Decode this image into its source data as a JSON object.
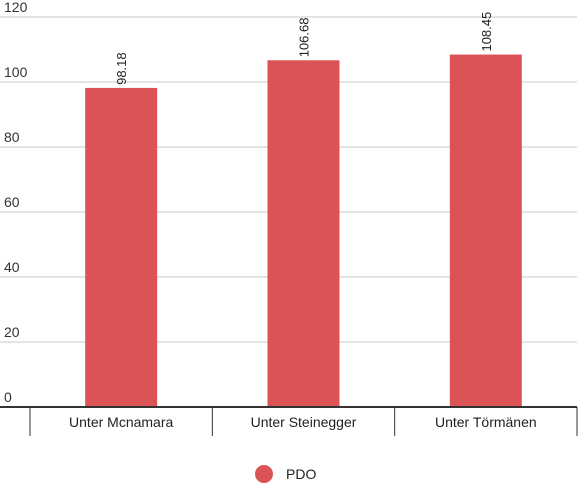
{
  "chart_data": {
    "type": "bar",
    "categories": [
      "Unter Mcnamara",
      "Unter Steinegger",
      "Unter Törmänen"
    ],
    "series": [
      {
        "name": "PDO",
        "values": [
          98.18,
          106.68,
          108.45
        ],
        "color": "#dc5356"
      }
    ],
    "data_labels": [
      "98.18",
      "106.68",
      "108.45"
    ],
    "y_ticks": [
      "0",
      "20",
      "40",
      "60",
      "80",
      "100",
      "120"
    ],
    "ylim": [
      0,
      120
    ],
    "grid": true,
    "legend_position": "bottom-center"
  }
}
